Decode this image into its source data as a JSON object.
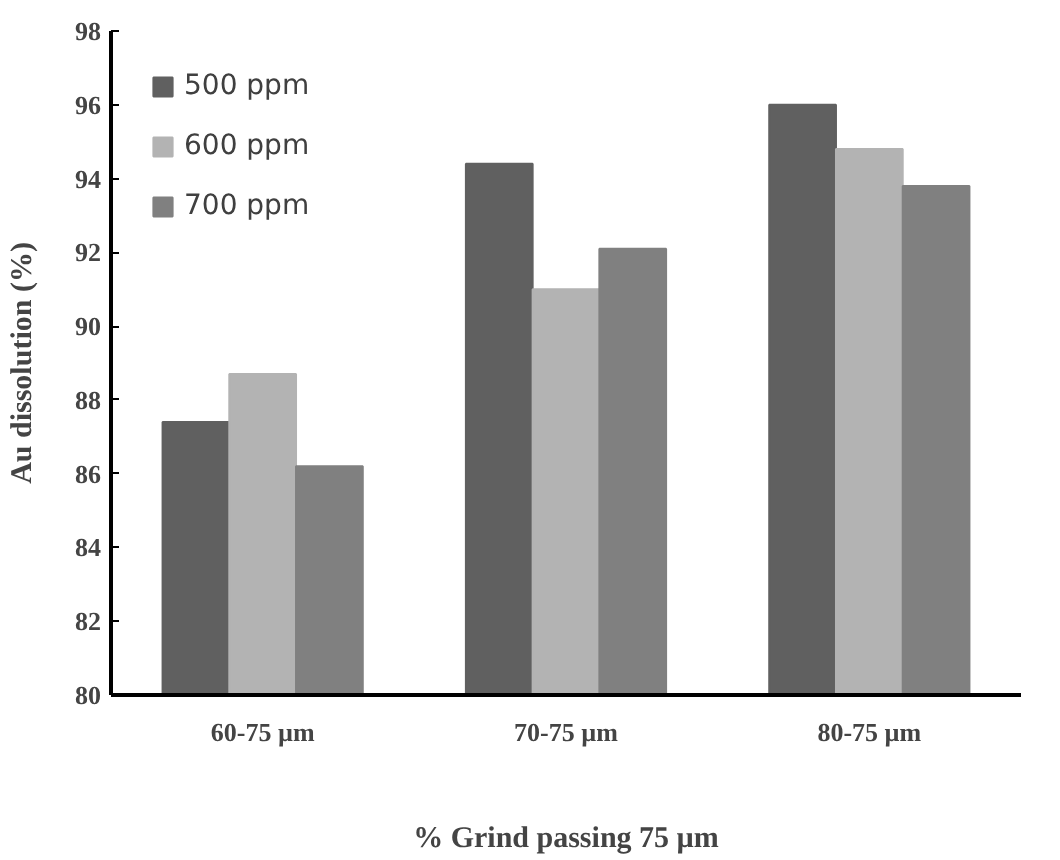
{
  "chart_data": {
    "type": "bar",
    "xlabel": "% Grind passing 75 µm",
    "ylabel": "Au dissolution (%)",
    "categories": [
      "60-75 µm",
      "70-75 µm",
      "80-75 µm"
    ],
    "series": [
      {
        "name": "500 ppm",
        "color": "#606060",
        "values": [
          87.4,
          94.4,
          96.0
        ]
      },
      {
        "name": "600 ppm",
        "color": "#b3b3b3",
        "values": [
          88.7,
          91.0,
          94.8
        ]
      },
      {
        "name": "700 ppm",
        "color": "#808080",
        "values": [
          86.2,
          92.1,
          93.8
        ]
      }
    ],
    "ylim": [
      80,
      98
    ],
    "yticks": [
      80,
      82,
      84,
      86,
      88,
      90,
      92,
      94,
      96,
      98
    ],
    "grid": false,
    "legend": "top left"
  }
}
